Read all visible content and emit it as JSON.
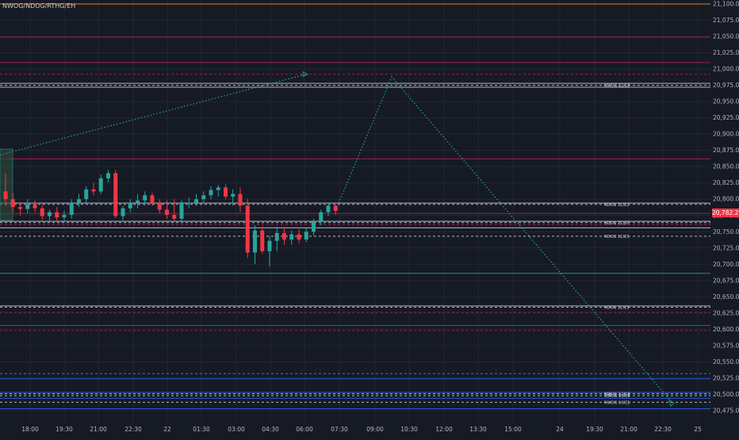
{
  "symbol": "NWOG/NDOG/RTHG/EH",
  "last_price": "20,782.22",
  "chart_data": {
    "type": "candlestick",
    "grid": true,
    "y_axis": {
      "range": [
        20462,
        21105
      ],
      "ticks": [
        21100,
        21075,
        21050,
        21025,
        21000,
        20975,
        20950,
        20925,
        20900,
        20875,
        20850,
        20825,
        20800,
        20775,
        20750,
        20725,
        20700,
        20675,
        20650,
        20625,
        20600,
        20575,
        20550,
        20525,
        20500,
        20475
      ],
      "tick_labels": [
        "21,100.00",
        "21,075.00",
        "21,050.00",
        "21,025.00",
        "21,000.00",
        "20,975.00",
        "20,950.00",
        "20,925.00",
        "20,900.00",
        "20,875.00",
        "20,850.00",
        "20,825.00",
        "20,800.00",
        "20,775.00",
        "20,750.00",
        "20,725.00",
        "20,700.00",
        "20,675.00",
        "20,650.00",
        "20,625.00",
        "20,600.00",
        "20,575.00",
        "20,550.00",
        "20,525.00",
        "20,500.00",
        "20,475.00"
      ]
    },
    "x_axis": {
      "tick_labels": [
        "18:00",
        "19:30",
        "21:00",
        "22:30",
        "22",
        "01:30",
        "03:00",
        "04:30",
        "06:00",
        "07:30",
        "09:00",
        "10:30",
        "12:00",
        "13:30",
        "15:00",
        "24",
        "19:30",
        "21:00",
        "22:30",
        "25"
      ]
    },
    "levels": [
      {
        "price": 21100,
        "color": "#f7931a",
        "style": "solid"
      },
      {
        "price": 21049,
        "color": "#c2185b",
        "style": "solid"
      },
      {
        "price": 21010,
        "color": "#c2185b",
        "style": "solid"
      },
      {
        "price": 20992,
        "color": "#c2185b",
        "style": "dashed"
      },
      {
        "price": 20978,
        "color": "#d1d4dc",
        "style": "solid"
      },
      {
        "price": 20975,
        "color": "#d1d4dc",
        "style": "dashed",
        "label": "NWOG 11/18"
      },
      {
        "price": 20972,
        "color": "#d1d4dc",
        "style": "solid"
      },
      {
        "price": 20862,
        "color": "#c2185b",
        "style": "solid"
      },
      {
        "price": 20794,
        "color": "#d1d4dc",
        "style": "solid"
      },
      {
        "price": 20792,
        "color": "#d1d4dc",
        "style": "dashed",
        "label": "NDOG 11/22"
      },
      {
        "price": 20778,
        "color": "#c2185b",
        "style": "solid"
      },
      {
        "price": 20766,
        "color": "#d1d4dc",
        "style": "solid"
      },
      {
        "price": 20764,
        "color": "#d1d4dc",
        "style": "dashed",
        "label": "NDOG 11/20"
      },
      {
        "price": 20761,
        "color": "#c2185b",
        "style": "dashed"
      },
      {
        "price": 20756,
        "color": "#d1d4dc",
        "style": "solid"
      },
      {
        "price": 20743,
        "color": "#d1d4dc",
        "style": "dashed",
        "label": "NDOG 11/21"
      },
      {
        "price": 20686,
        "color": "#26a69a",
        "style": "solid"
      },
      {
        "price": 20636,
        "color": "#d1d4dc",
        "style": "solid"
      },
      {
        "price": 20634,
        "color": "#d1d4dc",
        "style": "dashed",
        "label": "NDOG 11/19"
      },
      {
        "price": 20626,
        "color": "#c2185b",
        "style": "dashed"
      },
      {
        "price": 20606,
        "color": "#2962ff",
        "style": "solid"
      },
      {
        "price": 20598,
        "color": "#c2185b",
        "style": "dashed"
      },
      {
        "price": 20532,
        "color": "#26a69a",
        "style": "dashed"
      },
      {
        "price": 20524,
        "color": "#2962ff",
        "style": "solid"
      },
      {
        "price": 20503,
        "color": "#2962ff",
        "style": "solid"
      },
      {
        "price": 20501,
        "color": "#d1d4dc",
        "style": "dashed",
        "label": "NWOG 11/18"
      },
      {
        "price": 20498,
        "color": "#d1d4dc",
        "style": "dashed",
        "label": "NWOG 10/28"
      },
      {
        "price": 20494,
        "color": "#2962ff",
        "style": "solid"
      },
      {
        "price": 20488,
        "color": "#d1d4dc",
        "style": "dashed",
        "label": "NWOG 10/21"
      },
      {
        "price": 20478,
        "color": "#2962ff",
        "style": "solid"
      }
    ],
    "candles": [
      {
        "o": 20812,
        "h": 20840,
        "l": 20790,
        "c": 20800
      },
      {
        "o": 20800,
        "h": 20810,
        "l": 20780,
        "c": 20788
      },
      {
        "o": 20788,
        "h": 20795,
        "l": 20775,
        "c": 20785
      },
      {
        "o": 20785,
        "h": 20800,
        "l": 20778,
        "c": 20792
      },
      {
        "o": 20792,
        "h": 20798,
        "l": 20780,
        "c": 20786
      },
      {
        "o": 20786,
        "h": 20792,
        "l": 20768,
        "c": 20774
      },
      {
        "o": 20774,
        "h": 20784,
        "l": 20766,
        "c": 20780
      },
      {
        "o": 20780,
        "h": 20788,
        "l": 20766,
        "c": 20772
      },
      {
        "o": 20772,
        "h": 20782,
        "l": 20766,
        "c": 20776
      },
      {
        "o": 20776,
        "h": 20800,
        "l": 20770,
        "c": 20795
      },
      {
        "o": 20795,
        "h": 20808,
        "l": 20788,
        "c": 20800
      },
      {
        "o": 20800,
        "h": 20820,
        "l": 20795,
        "c": 20815
      },
      {
        "o": 20815,
        "h": 20825,
        "l": 20806,
        "c": 20812
      },
      {
        "o": 20812,
        "h": 20838,
        "l": 20808,
        "c": 20832
      },
      {
        "o": 20832,
        "h": 20845,
        "l": 20826,
        "c": 20840
      },
      {
        "o": 20840,
        "h": 20845,
        "l": 20771,
        "c": 20774
      },
      {
        "o": 20774,
        "h": 20790,
        "l": 20768,
        "c": 20786
      },
      {
        "o": 20786,
        "h": 20800,
        "l": 20780,
        "c": 20794
      },
      {
        "o": 20794,
        "h": 20808,
        "l": 20786,
        "c": 20798
      },
      {
        "o": 20798,
        "h": 20812,
        "l": 20790,
        "c": 20806
      },
      {
        "o": 20806,
        "h": 20810,
        "l": 20790,
        "c": 20794
      },
      {
        "o": 20794,
        "h": 20800,
        "l": 20778,
        "c": 20784
      },
      {
        "o": 20784,
        "h": 20798,
        "l": 20770,
        "c": 20776
      },
      {
        "o": 20776,
        "h": 20800,
        "l": 20767,
        "c": 20770
      },
      {
        "o": 20770,
        "h": 20798,
        "l": 20766,
        "c": 20795
      },
      {
        "o": 20795,
        "h": 20802,
        "l": 20786,
        "c": 20795
      },
      {
        "o": 20795,
        "h": 20808,
        "l": 20790,
        "c": 20800
      },
      {
        "o": 20800,
        "h": 20812,
        "l": 20794,
        "c": 20806
      },
      {
        "o": 20806,
        "h": 20820,
        "l": 20800,
        "c": 20814
      },
      {
        "o": 20814,
        "h": 20822,
        "l": 20804,
        "c": 20818
      },
      {
        "o": 20818,
        "h": 20823,
        "l": 20800,
        "c": 20804
      },
      {
        "o": 20804,
        "h": 20815,
        "l": 20790,
        "c": 20808
      },
      {
        "o": 20808,
        "h": 20818,
        "l": 20780,
        "c": 20790
      },
      {
        "o": 20790,
        "h": 20800,
        "l": 20710,
        "c": 20718
      },
      {
        "o": 20718,
        "h": 20760,
        "l": 20700,
        "c": 20752
      },
      {
        "o": 20752,
        "h": 20758,
        "l": 20716,
        "c": 20720
      },
      {
        "o": 20720,
        "h": 20744,
        "l": 20696,
        "c": 20736
      },
      {
        "o": 20736,
        "h": 20758,
        "l": 20720,
        "c": 20748
      },
      {
        "o": 20748,
        "h": 20756,
        "l": 20730,
        "c": 20738
      },
      {
        "o": 20738,
        "h": 20752,
        "l": 20730,
        "c": 20746
      },
      {
        "o": 20746,
        "h": 20754,
        "l": 20732,
        "c": 20738
      },
      {
        "o": 20738,
        "h": 20756,
        "l": 20734,
        "c": 20750
      },
      {
        "o": 20750,
        "h": 20770,
        "l": 20744,
        "c": 20766
      },
      {
        "o": 20766,
        "h": 20784,
        "l": 20760,
        "c": 20780
      },
      {
        "o": 20780,
        "h": 20794,
        "l": 20774,
        "c": 20790
      },
      {
        "o": 20790,
        "h": 20792,
        "l": 20776,
        "c": 20782
      }
    ]
  }
}
